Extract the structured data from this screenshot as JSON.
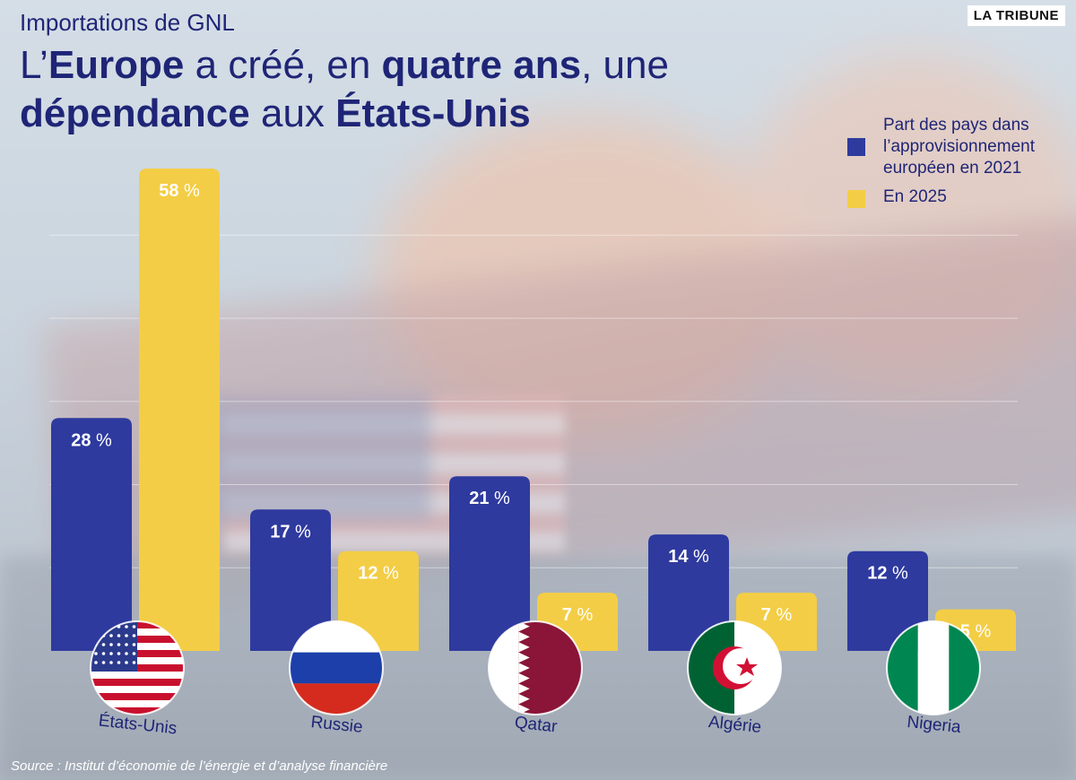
{
  "header": {
    "kicker": "Importations de GNL",
    "title_line1": [
      {
        "text": "L’",
        "bold": false
      },
      {
        "text": "Europe",
        "bold": true
      },
      {
        "text": " a créé, en ",
        "bold": false
      },
      {
        "text": "quatre ans",
        "bold": true
      },
      {
        "text": ", une",
        "bold": false
      }
    ],
    "title_line2": [
      {
        "text": "dépendance",
        "bold": true
      },
      {
        "text": " aux ",
        "bold": false
      },
      {
        "text": "États-Unis",
        "bold": true
      }
    ],
    "brand": "LA TRIBUNE"
  },
  "colors": {
    "series_2021": "#2e3a9e",
    "series_2025": "#f3cd45",
    "title": "#1f2576"
  },
  "chart_data": {
    "type": "bar",
    "categories": [
      "États-Unis",
      "Russie",
      "Qatar",
      "Algérie",
      "Nigeria"
    ],
    "flags": [
      "us-flag-icon",
      "russia-flag-icon",
      "qatar-flag-icon",
      "algeria-flag-icon",
      "nigeria-flag-icon"
    ],
    "series": [
      {
        "name": "Part des pays dans l’approvisionnement européen en 2021",
        "values": [
          28,
          17,
          21,
          14,
          12
        ]
      },
      {
        "name": "En 2025",
        "values": [
          58,
          12,
          7,
          7,
          5
        ]
      }
    ],
    "value_suffix": " %",
    "ylim": [
      0,
      58
    ],
    "grid": true,
    "legend_position": "top-right"
  },
  "source": "Source : Institut d’économie de l’énergie et d’analyse financière"
}
